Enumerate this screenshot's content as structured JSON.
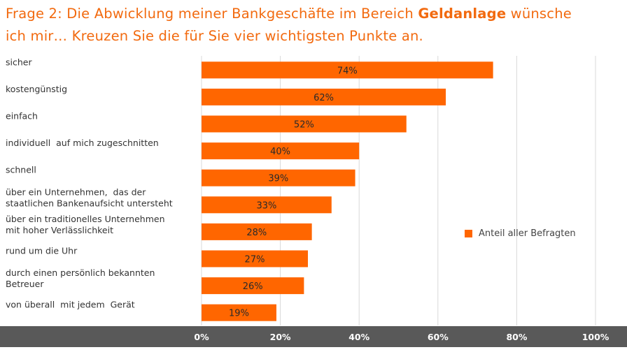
{
  "title": {
    "line1_prefix": "Frage 2: Die Abwicklung meiner Bankgeschäfte im Bereich ",
    "line1_bold": "Geldanlage",
    "line1_suffix": " wünsche",
    "line2": "ich mir… Kreuzen Sie die für Sie vier wichtigsten Punkte an."
  },
  "colors": {
    "title": "#f26a0f",
    "bar": "#ff6600",
    "axis_band": "#595959",
    "grid": "#d9d9d9"
  },
  "chart_data": {
    "type": "bar",
    "orientation": "horizontal",
    "categories": [
      [
        "sicher"
      ],
      [
        "kostengünstig"
      ],
      [
        "einfach"
      ],
      [
        "individuell  auf mich zugeschnitten"
      ],
      [
        "schnell"
      ],
      [
        "über ein Unternehmen,  das der",
        "staatlichen Bankenaufsicht untersteht"
      ],
      [
        "über ein traditionelles Unternehmen",
        "mit hoher Verlässlichkeit"
      ],
      [
        "rund um die Uhr"
      ],
      [
        "durch einen persönlich bekannten",
        "Betreuer"
      ],
      [
        "von überall  mit jedem  Gerät"
      ]
    ],
    "series": [
      {
        "name": "Anteil aller Befragten",
        "values": [
          74,
          62,
          52,
          40,
          39,
          33,
          28,
          27,
          26,
          19
        ],
        "labels": [
          "74%",
          "62%",
          "52%",
          "40%",
          "39%",
          "33%",
          "28%",
          "27%",
          "26%",
          "19%"
        ]
      }
    ],
    "xlim": [
      0,
      100
    ],
    "xticks": [
      0,
      20,
      40,
      60,
      80,
      100
    ],
    "xtick_labels": [
      "0%",
      "20%",
      "40%",
      "60%",
      "80%",
      "100%"
    ],
    "grid": true,
    "legend_position": "right"
  }
}
